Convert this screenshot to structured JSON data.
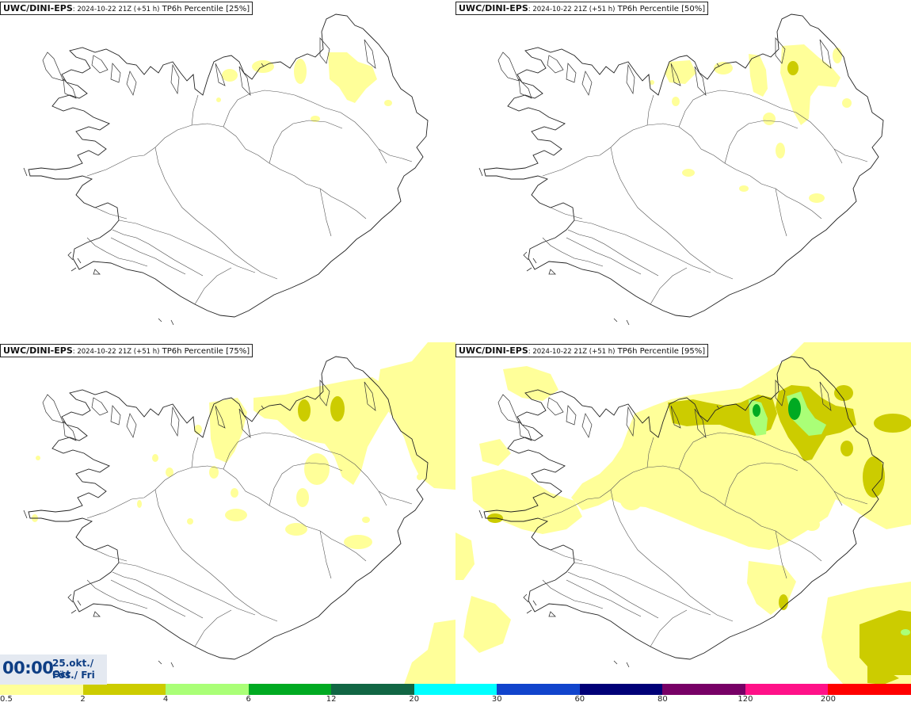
{
  "panels": [
    {
      "model": "UWC/DINI-EPS",
      "run": ": 2024-10-22 21Z (+51 h)",
      "field": " TP6h Percentile [25%]"
    },
    {
      "model": "UWC/DINI-EPS",
      "run": ": 2024-10-22 21Z (+51 h)",
      "field": " TP6h Percentile [50%]"
    },
    {
      "model": "UWC/DINI-EPS",
      "run": ": 2024-10-22 21Z (+51 h)",
      "field": " TP6h Percentile [75%]"
    },
    {
      "model": "UWC/DINI-EPS",
      "run": ": 2024-10-22 21Z (+51 h)",
      "field": " TP6h Percentile [95%]"
    }
  ],
  "valid_time": {
    "clock": "00:00",
    "date_line1": "25.okt./ Oct",
    "date_line2": "Fös./ Fri"
  },
  "legend": {
    "bins": [
      {
        "color": "#ffff99"
      },
      {
        "color": "#cccc00"
      },
      {
        "color": "#aaff77"
      },
      {
        "color": "#00aa22"
      },
      {
        "color": "#116644"
      },
      {
        "color": "#00ffff"
      },
      {
        "color": "#1144cc"
      },
      {
        "color": "#000077"
      },
      {
        "color": "#770066"
      },
      {
        "color": "#ff1188"
      },
      {
        "color": "#ff0000"
      }
    ],
    "ticks": [
      "0.5",
      "2",
      "4",
      "6",
      "12",
      "20",
      "30",
      "60",
      "80",
      "120",
      "200"
    ]
  },
  "colors": {
    "coast": "#222222",
    "rivers": "#555555",
    "light_precip": "#ffff99",
    "moderate_precip": "#cccc00",
    "heavy_precip": "#aaff77",
    "very_heavy_precip": "#00aa22"
  }
}
